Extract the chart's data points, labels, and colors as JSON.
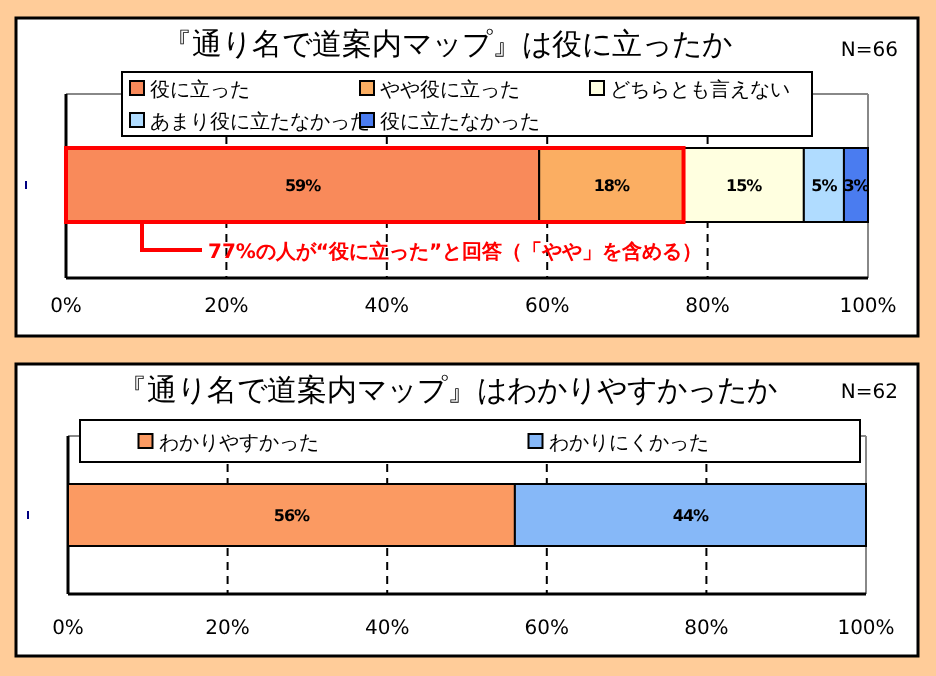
{
  "chart_data": [
    {
      "type": "bar",
      "orientation": "horizontal",
      "stacked": true,
      "title": "『通り名で道案内マップ』は役に立ったか",
      "categories": [
        null
      ],
      "series": [
        {
          "name": "役に立った",
          "color": "#f98a5a",
          "values": [
            59
          ],
          "value_labels": [
            "59%"
          ]
        },
        {
          "name": "やや役に立った",
          "color": "#fbae62",
          "values": [
            18
          ],
          "value_labels": [
            "18%"
          ]
        },
        {
          "name": "どちらとも言えない",
          "color": "#ffffe0",
          "values": [
            15
          ],
          "value_labels": [
            "15%"
          ]
        },
        {
          "name": "あまり役に立たなかった",
          "color": "#b0dcff",
          "values": [
            5
          ],
          "value_labels": [
            "5%"
          ]
        },
        {
          "name": "役に立たなかった",
          "color": "#4a7cf0",
          "values": [
            3
          ],
          "value_labels": [
            "3%"
          ]
        }
      ],
      "xlim": [
        0,
        100
      ],
      "xticks": [
        {
          "value": 0,
          "label": "0%"
        },
        {
          "value": 20,
          "label": "20%"
        },
        {
          "value": 40,
          "label": "40%"
        },
        {
          "value": 60,
          "label": "60%"
        },
        {
          "value": 80,
          "label": "80%"
        },
        {
          "value": 100,
          "label": "100%"
        }
      ],
      "grid": "x",
      "legend": "top",
      "annotations": [
        "N=66",
        "77%の人が“役に立った”と回答（「やや」を含める）"
      ]
    },
    {
      "type": "bar",
      "orientation": "horizontal",
      "stacked": true,
      "title": "『通り名で道案内マップ』はわかりやすかったか",
      "categories": [
        null
      ],
      "series": [
        {
          "name": "わかりやすかった",
          "color": "#fb9a62",
          "values": [
            56
          ],
          "value_labels": [
            "56%"
          ]
        },
        {
          "name": "わかりにくかった",
          "color": "#86b8f8",
          "values": [
            44
          ],
          "value_labels": [
            "44%"
          ]
        }
      ],
      "xlim": [
        0,
        100
      ],
      "xticks": [
        {
          "value": 0,
          "label": "0%"
        },
        {
          "value": 20,
          "label": "20%"
        },
        {
          "value": 40,
          "label": "40%"
        },
        {
          "value": 60,
          "label": "60%"
        },
        {
          "value": 80,
          "label": "80%"
        },
        {
          "value": 100,
          "label": "100%"
        }
      ],
      "grid": "x",
      "legend": "top",
      "annotations": [
        "N=62"
      ]
    }
  ]
}
